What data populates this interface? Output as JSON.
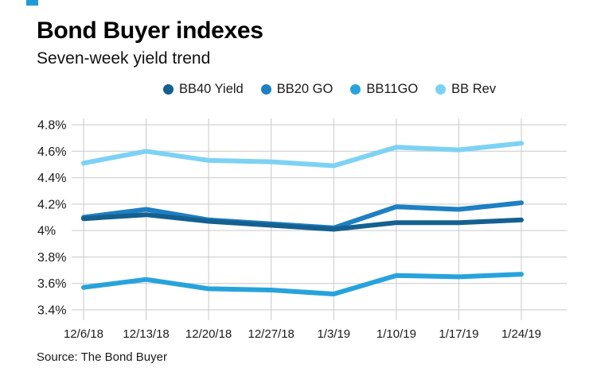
{
  "page": {
    "accent_color": "#1e9ad6",
    "background_color": "#ffffff",
    "grid_color": "#c9c9c9"
  },
  "header": {
    "title": "Bond Buyer indexes",
    "subtitle": "Seven-week yield trend"
  },
  "footer": {
    "source": "Source: The Bond Buyer"
  },
  "chart_data": {
    "type": "line",
    "title": "Bond Buyer indexes",
    "subtitle": "Seven-week yield trend",
    "x": [
      "12/6/18",
      "12/13/18",
      "12/20/18",
      "12/27/18",
      "1/3/19",
      "1/10/19",
      "1/17/19",
      "1/24/19"
    ],
    "series": [
      {
        "name": "BB40 Yield",
        "color": "#14608f",
        "values": [
          4.09,
          4.12,
          4.07,
          4.04,
          4.01,
          4.06,
          4.06,
          4.08
        ]
      },
      {
        "name": "BB20 GO",
        "color": "#1e7fc2",
        "values": [
          4.1,
          4.16,
          4.08,
          4.05,
          4.02,
          4.18,
          4.16,
          4.21
        ]
      },
      {
        "name": "BB11GO",
        "color": "#27a3dc",
        "values": [
          3.57,
          3.63,
          3.56,
          3.55,
          3.52,
          3.66,
          3.65,
          3.67
        ]
      },
      {
        "name": "BB Rev",
        "color": "#7dd2f3",
        "values": [
          4.51,
          4.6,
          4.53,
          4.52,
          4.49,
          4.63,
          4.61,
          4.66
        ]
      }
    ],
    "yticks": {
      "values": [
        4.8,
        4.6,
        4.4,
        4.2,
        4.0,
        3.8,
        3.6,
        3.4
      ],
      "labels": [
        "4.8%",
        "4.6%",
        "4.4%",
        "4.2%",
        "4%",
        "3.8%",
        "3.6%",
        "3.4%"
      ]
    },
    "ylim": [
      3.35,
      4.85
    ],
    "xlabel": "",
    "ylabel": "",
    "grid": true,
    "legend_position": "top"
  }
}
